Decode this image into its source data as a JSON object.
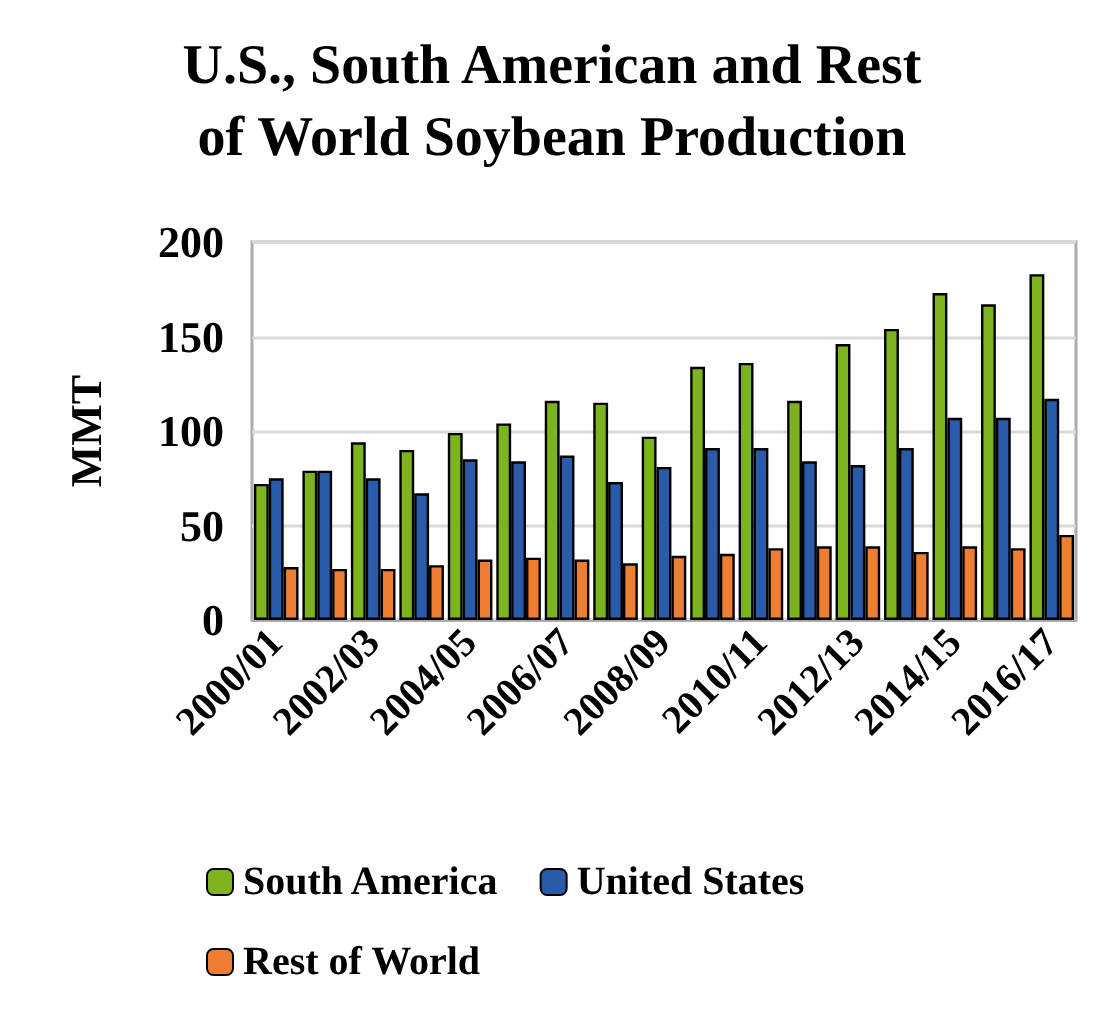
{
  "chart_data": {
    "type": "bar",
    "title": "U.S., South American and Rest\nof World Soybean Production",
    "ylabel": "MMT",
    "categories": [
      "2000/01",
      null,
      "2002/03",
      null,
      "2004/05",
      null,
      "2006/07",
      null,
      "2008/09",
      null,
      "2010/11",
      null,
      "2012/13",
      null,
      "2014/15",
      null,
      "2016/17"
    ],
    "series": [
      {
        "name": "South America",
        "color": "#7cb31f",
        "values": [
          72,
          79,
          94,
          90,
          99,
          104,
          116,
          115,
          97,
          134,
          136,
          116,
          146,
          154,
          173,
          167,
          183
        ]
      },
      {
        "name": "United States",
        "color": "#2a5ba8",
        "values": [
          75,
          79,
          75,
          67,
          85,
          84,
          87,
          73,
          81,
          91,
          91,
          84,
          82,
          91,
          107,
          107,
          117
        ]
      },
      {
        "name": "Rest of World",
        "color": "#ee7f32",
        "values": [
          28,
          27,
          27,
          29,
          32,
          33,
          32,
          30,
          34,
          35,
          38,
          39,
          39,
          36,
          39,
          38,
          45
        ]
      }
    ],
    "ylim": [
      0,
      200
    ],
    "yticks": [
      0,
      50,
      100,
      150,
      200
    ],
    "grid": "y",
    "legend": "bottom"
  }
}
